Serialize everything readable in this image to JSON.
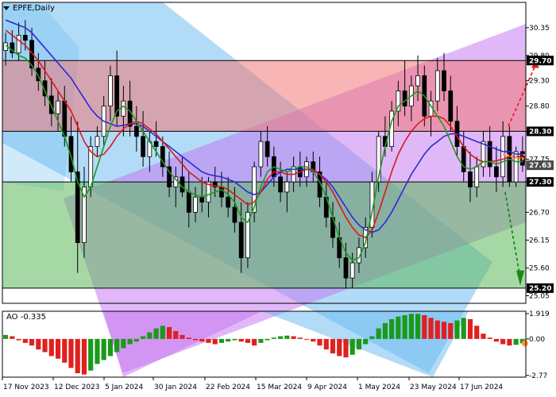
{
  "window": {
    "symbol_title": "EPFE,Daily",
    "menu_arrow_icon": "triangle-down-icon"
  },
  "chart_data": [
    {
      "type": "candlestick",
      "title": "EPFE,Daily",
      "ylim": [
        24.9,
        30.85
      ],
      "y_ticks": [
        "30.35",
        "29.80",
        "29.30",
        "28.80",
        "28.30",
        "27.75",
        "27.30",
        "26.70",
        "26.15",
        "25.60",
        "25.05"
      ],
      "x_ticks": [
        "17 Nov 2023",
        "12 Dec 2023",
        "5 Jan 2024",
        "30 Jan 2024",
        "22 Feb 2024",
        "15 Mar 2024",
        "9 Apr 2024",
        "1 May 2024",
        "23 May 2024",
        "17 Jun 2024"
      ],
      "price_badges": [
        {
          "label": "29.70",
          "value": 29.7,
          "color": "#000000"
        },
        {
          "label": "28.30",
          "value": 28.3,
          "color": "#000000"
        },
        {
          "label": "27.63",
          "value": 27.63,
          "color": "#4a4a4a"
        },
        {
          "label": "27.30",
          "value": 27.3,
          "color": "#000000"
        },
        {
          "label": "25.20",
          "value": 25.2,
          "color": "#000000"
        }
      ],
      "horizontal_levels": [
        29.7,
        28.3,
        27.3,
        25.2
      ],
      "zones": [
        {
          "name": "red-zone",
          "from": 28.3,
          "to": 29.7,
          "color": "#f07878"
        },
        {
          "name": "green-zone",
          "from": 25.2,
          "to": 27.3,
          "color": "#5cb85c"
        }
      ],
      "candles": [
        [
          29.9,
          30.25,
          29.6,
          30.05
        ],
        [
          30.05,
          30.3,
          29.75,
          29.85
        ],
        [
          29.85,
          30.45,
          29.7,
          30.2
        ],
        [
          30.2,
          30.5,
          29.9,
          30.1
        ],
        [
          30.1,
          30.35,
          29.4,
          29.55
        ],
        [
          29.55,
          29.85,
          29.1,
          29.3
        ],
        [
          29.3,
          29.7,
          28.8,
          29.0
        ],
        [
          29.0,
          29.35,
          28.4,
          28.65
        ],
        [
          28.65,
          29.1,
          28.3,
          28.9
        ],
        [
          28.9,
          29.2,
          28.0,
          28.2
        ],
        [
          28.2,
          28.6,
          27.3,
          27.5
        ],
        [
          27.5,
          28.5,
          25.5,
          26.1
        ],
        [
          26.1,
          27.6,
          25.8,
          27.2
        ],
        [
          27.2,
          28.2,
          27.0,
          28.0
        ],
        [
          28.0,
          28.4,
          27.8,
          28.2
        ],
        [
          28.2,
          29.0,
          28.0,
          28.8
        ],
        [
          28.8,
          29.6,
          28.5,
          29.4
        ],
        [
          29.4,
          29.9,
          28.4,
          28.6
        ],
        [
          28.6,
          29.2,
          28.2,
          28.9
        ],
        [
          28.9,
          29.3,
          28.2,
          28.4
        ],
        [
          28.4,
          28.8,
          27.9,
          28.2
        ],
        [
          28.2,
          28.7,
          27.6,
          27.8
        ],
        [
          27.8,
          28.3,
          27.5,
          28.1
        ],
        [
          28.1,
          28.5,
          27.8,
          28.0
        ],
        [
          28.0,
          28.2,
          27.4,
          27.6
        ],
        [
          27.6,
          27.9,
          27.0,
          27.2
        ],
        [
          27.2,
          27.6,
          26.8,
          27.4
        ],
        [
          27.4,
          27.8,
          27.0,
          27.1
        ],
        [
          27.1,
          27.5,
          26.4,
          26.7
        ],
        [
          26.7,
          27.2,
          26.5,
          27.0
        ],
        [
          27.0,
          27.4,
          26.7,
          26.9
        ],
        [
          26.9,
          27.4,
          26.6,
          27.3
        ],
        [
          27.3,
          27.6,
          27.0,
          27.2
        ],
        [
          27.2,
          27.5,
          26.8,
          27.0
        ],
        [
          27.0,
          27.4,
          26.6,
          26.8
        ],
        [
          26.8,
          27.2,
          26.3,
          26.5
        ],
        [
          26.5,
          26.9,
          25.5,
          25.8
        ],
        [
          25.8,
          26.9,
          25.6,
          26.7
        ],
        [
          26.7,
          27.7,
          26.5,
          27.6
        ],
        [
          27.6,
          28.3,
          27.4,
          28.1
        ],
        [
          28.1,
          28.4,
          27.6,
          27.8
        ],
        [
          27.8,
          28.0,
          27.2,
          27.4
        ],
        [
          27.4,
          27.7,
          26.9,
          27.1
        ],
        [
          27.1,
          27.5,
          26.7,
          27.3
        ],
        [
          27.3,
          27.8,
          27.1,
          27.6
        ],
        [
          27.6,
          27.9,
          27.2,
          27.4
        ],
        [
          27.4,
          27.8,
          27.2,
          27.7
        ],
        [
          27.7,
          27.9,
          27.3,
          27.5
        ],
        [
          27.5,
          27.8,
          26.8,
          27.0
        ],
        [
          27.0,
          27.3,
          26.4,
          26.6
        ],
        [
          26.6,
          26.9,
          26.0,
          26.2
        ],
        [
          26.2,
          26.5,
          25.6,
          25.8
        ],
        [
          25.8,
          26.1,
          25.2,
          25.4
        ],
        [
          25.4,
          25.9,
          25.2,
          25.7
        ],
        [
          25.7,
          26.2,
          25.5,
          26.0
        ],
        [
          26.0,
          26.6,
          25.8,
          26.4
        ],
        [
          26.4,
          27.5,
          26.2,
          27.3
        ],
        [
          27.3,
          28.3,
          27.1,
          28.2
        ],
        [
          28.2,
          28.6,
          27.8,
          28.0
        ],
        [
          28.0,
          28.9,
          27.9,
          28.7
        ],
        [
          28.7,
          29.3,
          28.4,
          29.1
        ],
        [
          29.1,
          29.7,
          28.6,
          28.8
        ],
        [
          28.8,
          29.4,
          28.5,
          29.2
        ],
        [
          29.2,
          29.8,
          28.9,
          29.4
        ],
        [
          29.4,
          29.6,
          28.4,
          28.6
        ],
        [
          28.6,
          29.1,
          28.2,
          28.9
        ],
        [
          28.9,
          29.75,
          28.7,
          29.5
        ],
        [
          29.5,
          29.85,
          28.9,
          29.1
        ],
        [
          29.1,
          29.4,
          28.3,
          28.5
        ],
        [
          28.5,
          28.8,
          27.8,
          28.0
        ],
        [
          28.0,
          28.3,
          27.3,
          27.5
        ],
        [
          27.5,
          27.9,
          26.9,
          27.2
        ],
        [
          27.2,
          27.8,
          27.0,
          27.6
        ],
        [
          27.6,
          28.3,
          27.4,
          28.1
        ],
        [
          28.1,
          28.4,
          27.4,
          27.6
        ],
        [
          27.6,
          28.0,
          27.1,
          27.4
        ],
        [
          27.4,
          28.5,
          27.2,
          28.2
        ],
        [
          28.2,
          28.4,
          27.2,
          27.3
        ],
        [
          27.3,
          28.0,
          27.2,
          27.9
        ],
        [
          27.9,
          28.2,
          27.5,
          27.63
        ]
      ],
      "lines": [
        {
          "name": "blue",
          "color": "#2a2ad8",
          "values": [
            30.5,
            30.45,
            30.4,
            30.35,
            30.25,
            30.1,
            29.95,
            29.8,
            29.65,
            29.5,
            29.35,
            29.15,
            28.95,
            28.75,
            28.6,
            28.5,
            28.45,
            28.4,
            28.42,
            28.45,
            28.45,
            28.4,
            28.3,
            28.2,
            28.1,
            28.0,
            27.9,
            27.8,
            27.7,
            27.6,
            27.5,
            27.45,
            27.42,
            27.4,
            27.35,
            27.3,
            27.2,
            27.1,
            27.05,
            27.1,
            27.25,
            27.4,
            27.5,
            27.55,
            27.55,
            27.55,
            27.55,
            27.52,
            27.45,
            27.35,
            27.2,
            27.0,
            26.8,
            26.6,
            26.45,
            26.35,
            26.3,
            26.35,
            26.5,
            26.7,
            26.95,
            27.2,
            27.45,
            27.65,
            27.85,
            28.0,
            28.1,
            28.2,
            28.25,
            28.25,
            28.2,
            28.15,
            28.1,
            28.05,
            28.0,
            27.95,
            27.9,
            27.9,
            27.85,
            27.85
          ]
        },
        {
          "name": "red",
          "color": "#d81a1a",
          "values": [
            30.3,
            30.2,
            30.1,
            30.0,
            29.85,
            29.7,
            29.5,
            29.3,
            29.1,
            28.9,
            28.7,
            28.4,
            28.1,
            27.9,
            27.8,
            27.85,
            28.0,
            28.2,
            28.35,
            28.45,
            28.5,
            28.45,
            28.35,
            28.25,
            28.1,
            27.95,
            27.8,
            27.65,
            27.5,
            27.4,
            27.3,
            27.25,
            27.22,
            27.2,
            27.15,
            27.05,
            26.95,
            26.85,
            26.9,
            27.1,
            27.35,
            27.5,
            27.5,
            27.45,
            27.45,
            27.5,
            27.55,
            27.55,
            27.45,
            27.3,
            27.1,
            26.85,
            26.6,
            26.4,
            26.25,
            26.2,
            26.35,
            26.7,
            27.1,
            27.5,
            27.85,
            28.1,
            28.3,
            28.45,
            28.55,
            28.6,
            28.6,
            28.55,
            28.4,
            28.2,
            28.0,
            27.85,
            27.75,
            27.7,
            27.7,
            27.72,
            27.75,
            27.8,
            27.8,
            27.8
          ]
        },
        {
          "name": "green",
          "color": "#1e9a1e",
          "values": [
            30.0,
            29.9,
            29.8,
            29.75,
            29.6,
            29.4,
            29.1,
            28.8,
            28.5,
            28.2,
            27.8,
            27.3,
            27.0,
            27.2,
            27.6,
            28.0,
            28.4,
            28.7,
            28.8,
            28.7,
            28.5,
            28.3,
            28.1,
            27.9,
            27.7,
            27.5,
            27.35,
            27.2,
            27.1,
            27.05,
            27.0,
            27.05,
            27.1,
            27.15,
            27.05,
            26.9,
            26.6,
            26.5,
            26.8,
            27.2,
            27.5,
            27.6,
            27.55,
            27.5,
            27.55,
            27.6,
            27.6,
            27.5,
            27.3,
            27.0,
            26.6,
            26.2,
            25.9,
            25.75,
            25.8,
            26.1,
            26.7,
            27.4,
            28.0,
            28.5,
            28.8,
            28.9,
            29.0,
            29.1,
            29.0,
            28.8,
            28.6,
            28.4,
            28.1,
            27.8,
            27.6,
            27.55,
            27.6,
            27.7,
            27.7,
            27.65,
            27.7,
            27.75,
            27.7,
            27.7
          ]
        }
      ]
    },
    {
      "type": "bar",
      "title": "AO -0.335",
      "ylim": [
        -2.9,
        2.1
      ],
      "y_ticks": [
        "1.919",
        "0.00",
        "-2.77"
      ],
      "colors": {
        "rising": "#1a9a1a",
        "falling": "#e02020"
      },
      "values": [
        0.3,
        0.2,
        -0.1,
        -0.3,
        -0.5,
        -0.8,
        -1.0,
        -1.3,
        -1.5,
        -1.8,
        -2.2,
        -2.6,
        -2.7,
        -2.4,
        -1.9,
        -1.6,
        -1.3,
        -1.0,
        -0.7,
        -0.4,
        -0.2,
        0.2,
        0.5,
        0.8,
        1.0,
        0.9,
        0.6,
        0.3,
        0.1,
        -0.1,
        -0.2,
        -0.3,
        -0.4,
        -0.3,
        -0.2,
        -0.1,
        -0.2,
        -0.3,
        -0.5,
        -0.3,
        -0.1,
        0.1,
        0.2,
        0.25,
        0.2,
        0.1,
        0.0,
        -0.2,
        -0.5,
        -0.8,
        -1.1,
        -1.3,
        -1.4,
        -1.2,
        -0.8,
        -0.4,
        0.2,
        0.8,
        1.2,
        1.5,
        1.7,
        1.8,
        1.9,
        1.9,
        1.8,
        1.6,
        1.4,
        1.3,
        1.2,
        1.4,
        1.6,
        1.5,
        1.0,
        0.4,
        0.1,
        -0.2,
        -0.4,
        -0.5,
        -0.45,
        -0.335
      ]
    }
  ]
}
